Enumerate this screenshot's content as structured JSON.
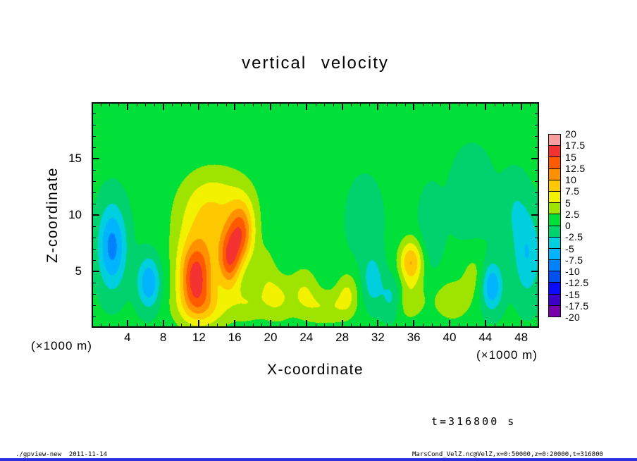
{
  "ui": {
    "background_color": "#ffffff",
    "bottom_bar_color": "#2a30e0",
    "frame_color": "#000000"
  },
  "chart_data": {
    "type": "heatmap",
    "title": "vertical velocity",
    "xlabel": "X-coordinate",
    "ylabel": "Z-coordinate",
    "x_unit_label": "(×1000 m)",
    "y_unit_label": "(×1000 m)",
    "annotation": "t=316800 s",
    "footer_left": "./gpview-new  2011-11-14",
    "footer_right": "MarsCond_VelZ.nc@VelZ,x=0:50000,z=0:20000,t=316800",
    "xlim": [
      0,
      50
    ],
    "ylim": [
      0,
      20
    ],
    "x_major_ticks": [
      4,
      8,
      12,
      16,
      20,
      24,
      28,
      32,
      36,
      40,
      44,
      48
    ],
    "x_minor_step": 1,
    "y_major_ticks": [
      5,
      10,
      15
    ],
    "y_minor_step": 1,
    "levels": [
      -20,
      -17.5,
      -15,
      -12.5,
      -10,
      -7.5,
      -5,
      -2.5,
      0,
      2.5,
      5,
      7.5,
      10,
      12.5,
      15,
      17.5,
      20
    ],
    "colors": [
      "#7800aa",
      "#3c00c8",
      "#0a0aff",
      "#0050f0",
      "#0082ff",
      "#00b4ff",
      "#00cfdd",
      "#00d26e",
      "#00e038",
      "#9fe400",
      "#f2f200",
      "#ffc800",
      "#ff9100",
      "#ff5a00",
      "#f53232",
      "#f79e9e"
    ],
    "colorbar_labels": [
      "20",
      "17.5",
      "15",
      "12.5",
      "10",
      "7.5",
      "5",
      "2.5",
      "0",
      "-2.5",
      "-5",
      "-7.5",
      "-10",
      "-12.5",
      "-15",
      "-17.5",
      "-20"
    ],
    "background_value": 0.6,
    "blobs": [
      {
        "x": 2.3,
        "z": 7.2,
        "a": -9,
        "sx": 1.1,
        "sz": 2.6
      },
      {
        "x": 6.4,
        "z": 4.0,
        "a": -8,
        "sx": 0.9,
        "sz": 1.6
      },
      {
        "x": 11.6,
        "z": 4.4,
        "a": 12,
        "sx": 1.25,
        "sz": 2.0
      },
      {
        "x": 12.3,
        "z": 7.5,
        "a": 6,
        "sx": 2.2,
        "sz": 3.0
      },
      {
        "x": 12.5,
        "z": 1.8,
        "a": 6,
        "sx": 2.2,
        "sz": 1.4
      },
      {
        "x": 15.4,
        "z": 5.8,
        "a": 9,
        "sx": 0.85,
        "sz": 1.8
      },
      {
        "x": 16.8,
        "z": 8.6,
        "a": 9,
        "sx": 1.0,
        "sz": 1.9
      },
      {
        "x": 16.0,
        "z": 7.2,
        "a": 4,
        "sx": 1.2,
        "sz": 1.8
      },
      {
        "x": 14.2,
        "z": 11.3,
        "a": 4.5,
        "sx": 2.8,
        "sz": 2.2
      },
      {
        "x": 17.5,
        "z": 2.2,
        "a": 3.5,
        "sx": 1.2,
        "sz": 1.2
      },
      {
        "x": 19.5,
        "z": 5.0,
        "a": 2.5,
        "sx": 0.9,
        "sz": 2.0
      },
      {
        "x": 20.8,
        "z": 2.6,
        "a": 4.5,
        "sx": 1.3,
        "sz": 1.5
      },
      {
        "x": 23.8,
        "z": 3.2,
        "a": 4,
        "sx": 1.1,
        "sz": 1.6
      },
      {
        "x": 26.3,
        "z": 1.8,
        "a": 4,
        "sx": 1.6,
        "sz": 1.1
      },
      {
        "x": 28.6,
        "z": 3.0,
        "a": 4.5,
        "sx": 0.9,
        "sz": 1.4
      },
      {
        "x": 31.4,
        "z": 4.2,
        "a": -4.5,
        "sx": 0.8,
        "sz": 1.6
      },
      {
        "x": 33.6,
        "z": 2.6,
        "a": -5,
        "sx": 0.9,
        "sz": 1.3
      },
      {
        "x": 35.7,
        "z": 5.8,
        "a": 9.5,
        "sx": 0.95,
        "sz": 1.4
      },
      {
        "x": 35.2,
        "z": 2.3,
        "a": 4,
        "sx": 1.4,
        "sz": 1.2
      },
      {
        "x": 37.8,
        "z": 8.5,
        "a": -2.5,
        "sx": 0.9,
        "sz": 2.5
      },
      {
        "x": 30.5,
        "z": 9.5,
        "a": -1.6,
        "sx": 1.6,
        "sz": 3.0
      },
      {
        "x": 42.5,
        "z": 11.5,
        "a": -1.6,
        "sx": 2.0,
        "sz": 3.5
      },
      {
        "x": 40.3,
        "z": 2.4,
        "a": 4,
        "sx": 1.5,
        "sz": 1.3
      },
      {
        "x": 42.8,
        "z": 4.8,
        "a": 3,
        "sx": 1.1,
        "sz": 1.5
      },
      {
        "x": 44.7,
        "z": 3.7,
        "a": -8.2,
        "sx": 0.85,
        "sz": 1.5
      },
      {
        "x": 48.7,
        "z": 6.5,
        "a": -5.5,
        "sx": 1.1,
        "sz": 2.8
      },
      {
        "x": 47.3,
        "z": 10.5,
        "a": -2.5,
        "sx": 1.0,
        "sz": 2.2
      }
    ]
  }
}
